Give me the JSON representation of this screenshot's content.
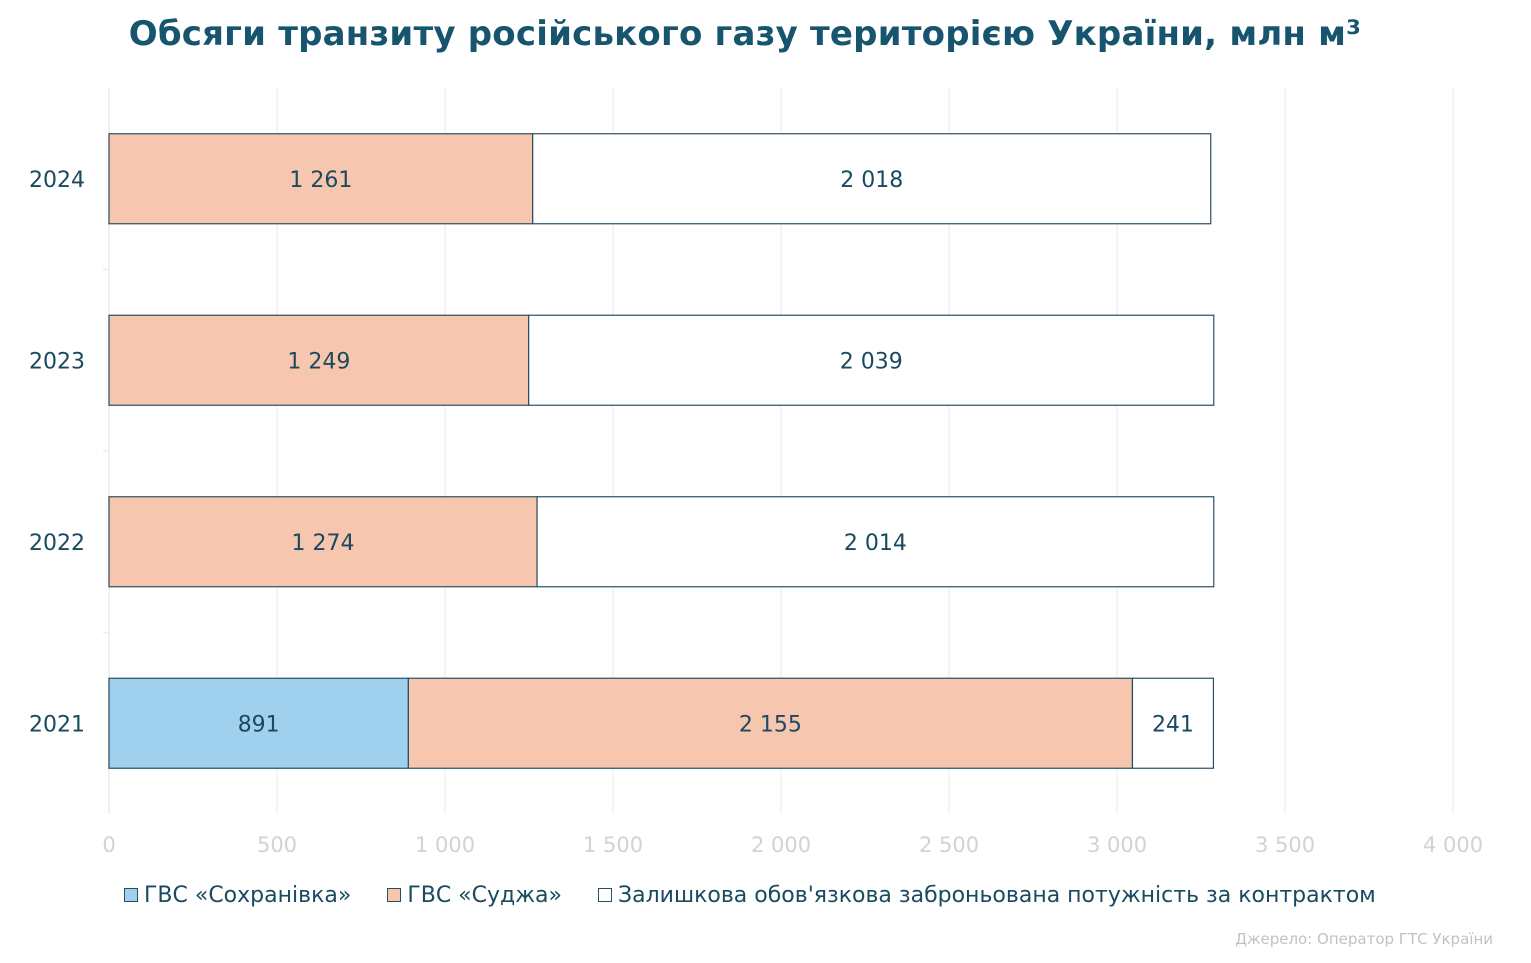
{
  "chart_data": {
    "type": "bar",
    "orientation": "horizontal",
    "stacked": true,
    "title": "Обсяги транзиту російського газу територією України, млн м³",
    "categories": [
      "2024",
      "2023",
      "2022",
      "2021"
    ],
    "series": [
      {
        "name": "ГВС «Сохранівка»",
        "color": "#9fd0ee",
        "values": [
          0,
          0,
          0,
          891
        ],
        "labels": [
          "",
          "",
          "",
          "891"
        ]
      },
      {
        "name": "ГВС «Суджа»",
        "color": "#f7c6ae",
        "values": [
          1261,
          1249,
          1274,
          2155
        ],
        "labels": [
          "1 261",
          "1 249",
          "1 274",
          "2 155"
        ]
      },
      {
        "name": "Залишкова обов'язкова заброньована потужність за контрактом",
        "color": "#ffffff",
        "values": [
          2018,
          2039,
          2014,
          241
        ],
        "labels": [
          "2 018",
          "2 039",
          "2 014",
          "241"
        ]
      }
    ],
    "xlim": [
      0,
      4000
    ],
    "x_ticks": [
      0,
      500,
      1000,
      1500,
      2000,
      2500,
      3000,
      3500,
      4000
    ],
    "x_tick_labels": [
      "0",
      "500",
      "1 000",
      "1 500",
      "2 000",
      "2 500",
      "3 000",
      "3 500",
      "4 000"
    ],
    "grid": "vertical",
    "legend_position": "bottom",
    "source": "Джерело: Оператор ГТС України"
  }
}
